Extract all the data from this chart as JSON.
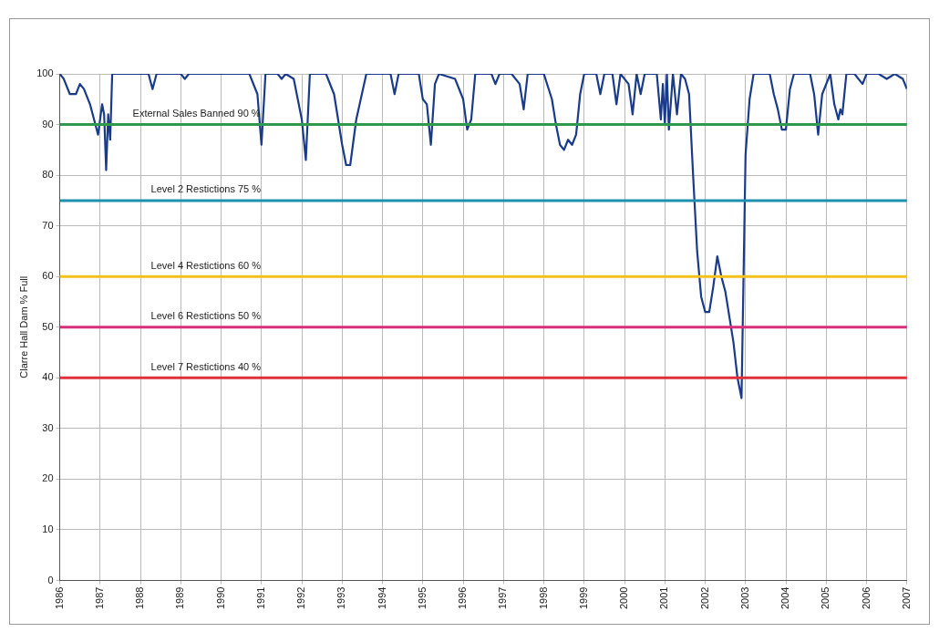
{
  "chart_data": {
    "type": "line",
    "ylabel": "Clarre Hall Dam % Full",
    "xlim": [
      1986,
      2007
    ],
    "xticks": [
      1986,
      1987,
      1988,
      1989,
      1990,
      1991,
      1992,
      1993,
      1994,
      1995,
      1996,
      1997,
      1998,
      1999,
      2000,
      2001,
      2002,
      2003,
      2004,
      2005,
      2006,
      2007
    ],
    "ylim": [
      0,
      100
    ],
    "yticks": [
      0,
      10,
      20,
      30,
      40,
      50,
      60,
      70,
      80,
      90,
      100
    ],
    "grid": true,
    "marker": "none",
    "line_style": "solid",
    "series": [
      {
        "color": "#1a3a8a",
        "x": [
          1986.0,
          1986.1,
          1986.25,
          1986.4,
          1986.5,
          1986.6,
          1986.75,
          1986.85,
          1986.95,
          1987.05,
          1987.1,
          1987.15,
          1987.2,
          1987.25,
          1987.3,
          1988.2,
          1988.3,
          1988.4,
          1989.0,
          1989.1,
          1989.2,
          1990.7,
          1990.9,
          1991.0,
          1991.1,
          1991.4,
          1991.5,
          1991.6,
          1991.8,
          1992.0,
          1992.1,
          1992.2,
          1992.6,
          1992.8,
          1993.0,
          1993.1,
          1993.2,
          1993.35,
          1993.6,
          1994.2,
          1994.3,
          1994.4,
          1994.9,
          1995.0,
          1995.1,
          1995.2,
          1995.3,
          1995.4,
          1995.8,
          1996.0,
          1996.1,
          1996.2,
          1996.3,
          1996.7,
          1996.8,
          1996.9,
          1997.2,
          1997.4,
          1997.5,
          1997.6,
          1998.0,
          1998.2,
          1998.3,
          1998.4,
          1998.5,
          1998.6,
          1998.7,
          1998.8,
          1998.9,
          1999.0,
          1999.3,
          1999.4,
          1999.5,
          1999.7,
          1999.8,
          1999.9,
          2000.1,
          2000.2,
          2000.3,
          2000.4,
          2000.5,
          2000.8,
          2000.9,
          2000.95,
          2001.0,
          2001.05,
          2001.1,
          2001.2,
          2001.3,
          2001.4,
          2001.5,
          2001.6,
          2001.7,
          2001.8,
          2001.9,
          2002.0,
          2002.1,
          2002.2,
          2002.3,
          2002.4,
          2002.5,
          2002.7,
          2002.8,
          2002.9,
          2003.0,
          2003.1,
          2003.2,
          2003.6,
          2003.7,
          2003.8,
          2003.9,
          2004.0,
          2004.1,
          2004.2,
          2004.6,
          2004.7,
          2004.8,
          2004.9,
          2005.1,
          2005.2,
          2005.3,
          2005.35,
          2005.4,
          2005.5,
          2005.7,
          2005.9,
          2006.0,
          2006.3,
          2006.5,
          2006.7,
          2006.9,
          2007.0
        ],
        "values": [
          100,
          99,
          96,
          96,
          98,
          97,
          94,
          91,
          88,
          94,
          92,
          81,
          92,
          87,
          100,
          100,
          97,
          100,
          100,
          99,
          100,
          100,
          96,
          86,
          100,
          100,
          99,
          100,
          99,
          91,
          83,
          100,
          100,
          96,
          86,
          82,
          82,
          91,
          100,
          100,
          96,
          100,
          100,
          95,
          94,
          86,
          98,
          100,
          99,
          95,
          89,
          91,
          100,
          100,
          98,
          100,
          100,
          98,
          93,
          100,
          100,
          95,
          90,
          86,
          85,
          87,
          86,
          88,
          96,
          100,
          100,
          96,
          100,
          100,
          94,
          100,
          98,
          92,
          100,
          96,
          100,
          100,
          91,
          98,
          90,
          100,
          89,
          100,
          92,
          100,
          99,
          96,
          80,
          65,
          56,
          53,
          53,
          58,
          64,
          60,
          57,
          47,
          40,
          36,
          84,
          95,
          100,
          100,
          96,
          93,
          89,
          89,
          97,
          100,
          100,
          96,
          88,
          96,
          100,
          94,
          91,
          93,
          92,
          100,
          100,
          98,
          100,
          100,
          99,
          100,
          99,
          97
        ]
      }
    ],
    "ref_lines": [
      {
        "axis": "y",
        "value": 90,
        "label": "External Sales Banned 90 %",
        "color": "#2f9a4f"
      },
      {
        "axis": "y",
        "value": 75,
        "label": "Level 2 Restictions 75 %",
        "color": "#1f8fb0"
      },
      {
        "axis": "y",
        "value": 60,
        "label": "Level 4 Restictions 60 %",
        "color": "#f2c21b"
      },
      {
        "axis": "y",
        "value": 50,
        "label": "Level 6 Restictions 50 %",
        "color": "#d6307a"
      },
      {
        "axis": "y",
        "value": 40,
        "label": "Level 7 Restictions 40 %",
        "color": "#e0303a"
      }
    ]
  }
}
